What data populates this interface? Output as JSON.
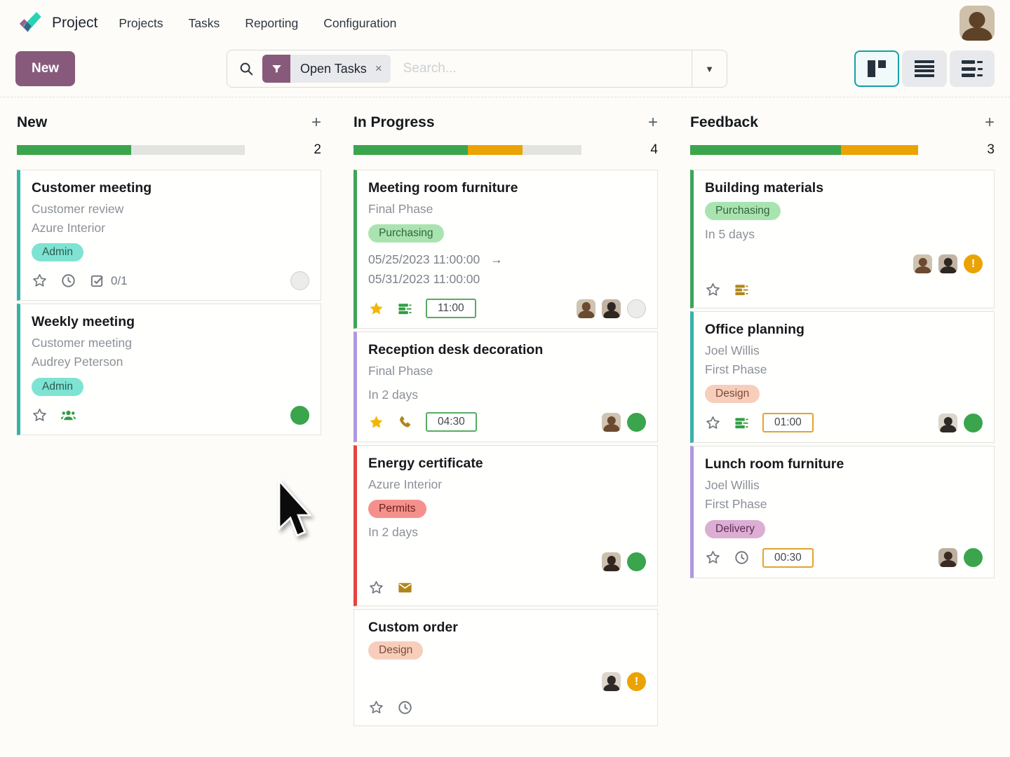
{
  "nav": {
    "app_label": "Project",
    "items": [
      "Projects",
      "Tasks",
      "Reporting",
      "Configuration"
    ],
    "avatar": "man-long-hair"
  },
  "toolbar": {
    "new_button": "New",
    "filter_facet": "Open Tasks",
    "facet_close": "×",
    "search_placeholder": "Search...",
    "icons": {
      "search": "magnifier",
      "facet": "funnel",
      "dropdown": "caret-down"
    }
  },
  "view_switcher": {
    "views": [
      "kanban",
      "list",
      "activity"
    ],
    "active": "kanban"
  },
  "colors": {
    "brand": "#875a7b",
    "progress_green": "#3aa54c",
    "progress_orange": "#eba303",
    "progress_gray": "#e3e3e1",
    "accents": {
      "teal": "#38b2a9",
      "green": "#3fa45a",
      "purple": "#af97e0",
      "red": "#e6433d"
    }
  },
  "board": {
    "columns": [
      {
        "title": "New",
        "count": "2",
        "add_label": "+",
        "progress": [
          {
            "tone": "green",
            "pct": 50
          },
          {
            "tone": "gray",
            "pct": 50
          }
        ],
        "cards": [
          {
            "accent": "teal",
            "title": "Customer meeting",
            "subtitles": [
              "Customer review",
              "Azure Interior"
            ],
            "tags": [
              {
                "label": "Admin",
                "color": "teal"
              }
            ],
            "footer": {
              "stacked": false,
              "left": [
                {
                  "icon": "star"
                },
                {
                  "icon": "clock"
                },
                {
                  "icon": "subtask",
                  "label": "0/1"
                }
              ],
              "avatars": [],
              "state": "gray"
            }
          },
          {
            "accent": "teal",
            "title": "Weekly meeting",
            "subtitles": [
              "Customer meeting",
              "Audrey Peterson"
            ],
            "tags": [
              {
                "label": "Admin",
                "color": "teal"
              }
            ],
            "footer": {
              "stacked": false,
              "left": [
                {
                  "icon": "star"
                },
                {
                  "icon": "group"
                }
              ],
              "avatars": [],
              "state": "green"
            }
          }
        ]
      },
      {
        "title": "In Progress",
        "count": "4",
        "add_label": "+",
        "progress": [
          {
            "tone": "green",
            "pct": 50
          },
          {
            "tone": "orange",
            "pct": 24
          },
          {
            "tone": "gray",
            "pct": 26
          }
        ],
        "cards": [
          {
            "accent": "green",
            "title": "Meeting room furniture",
            "subtitles": [
              "Final Phase"
            ],
            "tags": [
              {
                "label": "Purchasing",
                "color": "green"
              }
            ],
            "dates": {
              "start": "05/25/2023 11:00:00",
              "arrow": "→",
              "end": "05/31/2023 11:00:00"
            },
            "footer": {
              "stacked": false,
              "left": [
                {
                  "icon": "star-filled"
                },
                {
                  "icon": "timesheet",
                  "tone": "green"
                }
              ],
              "timer": {
                "text": "11:00",
                "tone": "green"
              },
              "avatars": [
                "man-long-hair",
                "man-beard"
              ],
              "state": "gray"
            }
          },
          {
            "accent": "purple",
            "title": "Reception desk decoration",
            "subtitles": [
              "Final Phase"
            ],
            "due": "In 2 days",
            "footer": {
              "stacked": false,
              "left": [
                {
                  "icon": "star-filled"
                },
                {
                  "icon": "phone"
                }
              ],
              "timer": {
                "text": "04:30",
                "tone": "green"
              },
              "avatars": [
                "man-long-hair"
              ],
              "state": "green"
            }
          },
          {
            "accent": "red",
            "title": "Energy certificate",
            "subtitles": [
              "Azure Interior"
            ],
            "tags": [
              {
                "label": "Permits",
                "color": "red"
              }
            ],
            "due": "In 2 days",
            "footer": {
              "stacked": true,
              "left": [
                {
                  "icon": "star"
                },
                {
                  "icon": "envelope"
                }
              ],
              "avatars": [
                "woman-dark"
              ],
              "state": "green"
            }
          },
          {
            "accent": "none",
            "title": "Custom order",
            "tags": [
              {
                "label": "Design",
                "color": "peach"
              }
            ],
            "footer": {
              "stacked": true,
              "left": [
                {
                  "icon": "star"
                },
                {
                  "icon": "clock"
                }
              ],
              "avatars": [
                "woman-bun"
              ],
              "state": "warn"
            }
          }
        ]
      },
      {
        "title": "Feedback",
        "count": "3",
        "add_label": "+",
        "progress": [
          {
            "tone": "green",
            "pct": 66
          },
          {
            "tone": "orange",
            "pct": 34
          }
        ],
        "cards": [
          {
            "accent": "green",
            "title": "Building materials",
            "tags": [
              {
                "label": "Purchasing",
                "color": "green"
              }
            ],
            "due": "In 5 days",
            "footer": {
              "stacked": true,
              "left": [
                {
                  "icon": "star"
                },
                {
                  "icon": "timesheet",
                  "tone": "gold"
                }
              ],
              "avatars": [
                "man-long-hair",
                "man-beard"
              ],
              "state": "warn"
            }
          },
          {
            "accent": "teal",
            "title": "Office planning",
            "subtitles": [
              "Joel Willis",
              "First Phase"
            ],
            "tags": [
              {
                "label": "Design",
                "color": "peach"
              }
            ],
            "footer": {
              "stacked": false,
              "left": [
                {
                  "icon": "star"
                },
                {
                  "icon": "timesheet",
                  "tone": "green"
                }
              ],
              "timer": {
                "text": "01:00",
                "tone": "orange"
              },
              "avatars": [
                "woman-bun"
              ],
              "state": "green"
            }
          },
          {
            "accent": "purple",
            "title": "Lunch room furniture",
            "subtitles": [
              "Joel Willis",
              "First Phase"
            ],
            "tags": [
              {
                "label": "Delivery",
                "color": "plum"
              }
            ],
            "footer": {
              "stacked": false,
              "left": [
                {
                  "icon": "star"
                },
                {
                  "icon": "clock"
                }
              ],
              "timer": {
                "text": "00:30",
                "tone": "orange"
              },
              "avatars": [
                "man-dark"
              ],
              "state": "green"
            }
          }
        ]
      }
    ]
  },
  "state_warn_glyph": "!"
}
